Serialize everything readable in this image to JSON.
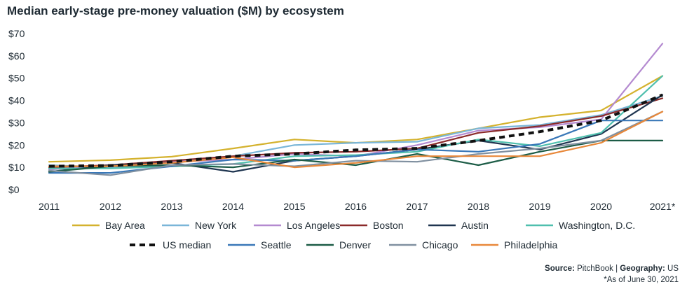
{
  "chart_data": {
    "type": "line",
    "title": "Median early-stage pre-money valuation ($M) by ecosystem",
    "x": [
      "2011",
      "2012",
      "2013",
      "2014",
      "2015",
      "2016",
      "2017",
      "2018",
      "2019",
      "2020",
      "2021*"
    ],
    "ylim": [
      0,
      70
    ],
    "yticks": [
      0,
      10,
      20,
      30,
      40,
      50,
      60,
      70
    ],
    "ytick_labels": [
      "$0",
      "$10",
      "$20",
      "$30",
      "$40",
      "$50",
      "$60",
      "$70"
    ],
    "grid": false,
    "legend_position": "bottom",
    "series": [
      {
        "name": "Bay Area",
        "color": "#d4b22e",
        "dashed": false,
        "values": [
          12.5,
          13.2,
          14.8,
          18.5,
          22.5,
          21.0,
          22.5,
          27.5,
          32.5,
          35.5,
          51.0
        ]
      },
      {
        "name": "New York",
        "color": "#7ab6d8",
        "dashed": false,
        "values": [
          11.0,
          10.0,
          12.0,
          15.0,
          20.0,
          21.0,
          21.5,
          27.5,
          29.0,
          33.5,
          42.0
        ]
      },
      {
        "name": "Los Angeles",
        "color": "#b48ad0",
        "dashed": false,
        "values": [
          9.0,
          11.0,
          12.5,
          13.5,
          16.0,
          15.0,
          20.0,
          26.5,
          28.0,
          31.5,
          65.5
        ]
      },
      {
        "name": "Boston",
        "color": "#8b2a2a",
        "dashed": false,
        "values": [
          10.0,
          11.0,
          13.0,
          15.0,
          16.5,
          17.0,
          18.5,
          25.5,
          28.5,
          33.0,
          41.0
        ]
      },
      {
        "name": "Austin",
        "color": "#1f3550",
        "dashed": false,
        "values": [
          8.0,
          11.0,
          12.0,
          8.0,
          13.0,
          15.0,
          18.0,
          22.0,
          18.0,
          25.0,
          42.5
        ]
      },
      {
        "name": "Washington, D.C.",
        "color": "#4fbfae",
        "dashed": false,
        "values": [
          9.5,
          9.5,
          10.5,
          11.5,
          15.0,
          15.5,
          17.0,
          22.5,
          19.5,
          25.5,
          51.0
        ]
      },
      {
        "name": "US median",
        "color": "#111111",
        "dashed": true,
        "values": [
          10.5,
          10.8,
          12.5,
          15.0,
          16.0,
          17.8,
          18.5,
          22.0,
          26.0,
          31.0,
          42.5
        ]
      },
      {
        "name": "Seattle",
        "color": "#3a78b8",
        "dashed": false,
        "values": [
          7.5,
          7.5,
          10.5,
          13.5,
          13.0,
          15.0,
          18.0,
          17.0,
          20.5,
          31.0,
          31.0
        ]
      },
      {
        "name": "Denver",
        "color": "#1c5c46",
        "dashed": false,
        "values": [
          8.0,
          10.5,
          11.0,
          10.0,
          13.5,
          11.0,
          16.0,
          11.0,
          17.0,
          22.0,
          22.0
        ]
      },
      {
        "name": "Chicago",
        "color": "#8090a0",
        "dashed": false,
        "values": [
          8.5,
          6.5,
          11.0,
          11.5,
          10.5,
          13.0,
          12.5,
          16.0,
          18.5,
          22.0,
          35.0
        ]
      },
      {
        "name": "Philadelphia",
        "color": "#e8883a",
        "dashed": false,
        "values": [
          10.5,
          10.5,
          12.0,
          14.5,
          10.0,
          12.0,
          15.0,
          15.0,
          15.0,
          21.0,
          35.0
        ]
      }
    ]
  },
  "footer": {
    "source_label": "Source:",
    "source_value": "PitchBook",
    "separator": "|",
    "geography_label": "Geography:",
    "geography_value": "US",
    "note": "*As of June 30, 2021"
  }
}
